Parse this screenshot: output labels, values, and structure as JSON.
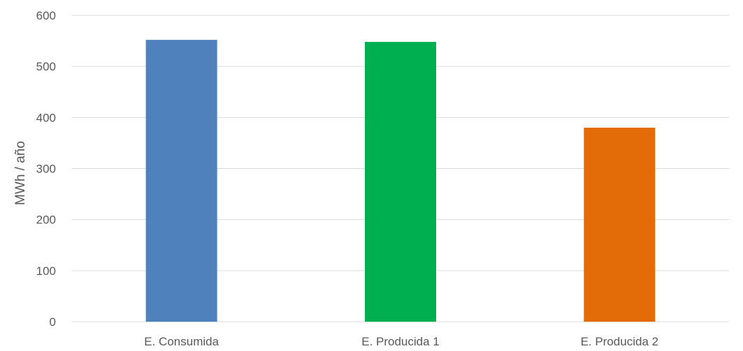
{
  "chart_data": {
    "type": "bar",
    "title": "",
    "xlabel": "",
    "ylabel": "MWh / año",
    "categories": [
      "E. Consumida",
      "E. Producida 1",
      "E. Producida 2"
    ],
    "values": [
      552,
      548,
      380
    ],
    "bar_colors": [
      "#4f81bd",
      "#00b050",
      "#e36c09"
    ],
    "ylim": [
      0,
      600
    ],
    "yticks": [
      0,
      100,
      200,
      300,
      400,
      500,
      600
    ],
    "ytick_labels": [
      "0",
      "100",
      "200",
      "300",
      "400",
      "500",
      "600"
    ],
    "grid": true,
    "grid_color": "#d9d9d9",
    "legend": "none"
  }
}
